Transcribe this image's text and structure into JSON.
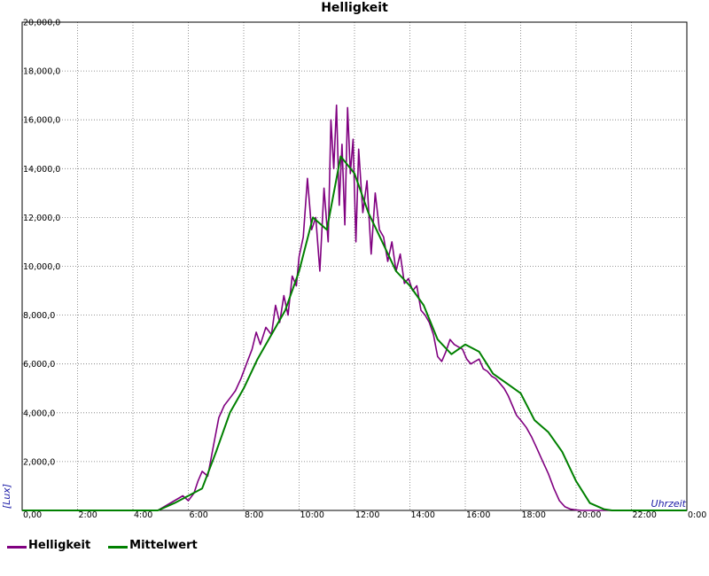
{
  "chart_data": {
    "type": "line",
    "title": "Helligkeit",
    "xlabel": "Uhrzeit",
    "ylabel": "[Lux]",
    "xlim": [
      0,
      24
    ],
    "ylim": [
      0,
      20000
    ],
    "grid": true,
    "legend_position": "bottom-left",
    "x_ticks": [
      {
        "value": 0,
        "label": "0,00"
      },
      {
        "value": 2,
        "label": "2:00"
      },
      {
        "value": 4,
        "label": "4:00"
      },
      {
        "value": 6,
        "label": "6:00"
      },
      {
        "value": 8,
        "label": "8:00"
      },
      {
        "value": 10,
        "label": "10:00"
      },
      {
        "value": 12,
        "label": "12:00"
      },
      {
        "value": 14,
        "label": "14:00"
      },
      {
        "value": 16,
        "label": "16:00"
      },
      {
        "value": 18,
        "label": "18:00"
      },
      {
        "value": 20,
        "label": "20:00"
      },
      {
        "value": 22,
        "label": "22:00"
      },
      {
        "value": 24,
        "label": "0:00"
      }
    ],
    "y_ticks": [
      {
        "value": 2000,
        "label": "2,000,0"
      },
      {
        "value": 4000,
        "label": "4,000,0"
      },
      {
        "value": 6000,
        "label": "6,000,0"
      },
      {
        "value": 8000,
        "label": "8,000,0"
      },
      {
        "value": 10000,
        "label": "10,000,0"
      },
      {
        "value": 12000,
        "label": "12,000,0"
      },
      {
        "value": 14000,
        "label": "14,000,0"
      },
      {
        "value": 16000,
        "label": "16,000,0"
      },
      {
        "value": 18000,
        "label": "18,000,0"
      },
      {
        "value": 20000,
        "label": "20,000,0"
      }
    ],
    "series": [
      {
        "name": "Helligkeit",
        "color": "#800080",
        "x": [
          0,
          4.9,
          5.2,
          5.5,
          5.8,
          6.0,
          6.2,
          6.35,
          6.5,
          6.7,
          6.9,
          7.1,
          7.3,
          7.5,
          7.7,
          7.9,
          8.1,
          8.3,
          8.45,
          8.6,
          8.8,
          9.0,
          9.15,
          9.3,
          9.45,
          9.6,
          9.75,
          9.9,
          10.0,
          10.15,
          10.3,
          10.45,
          10.6,
          10.75,
          10.9,
          11.05,
          11.15,
          11.25,
          11.35,
          11.45,
          11.55,
          11.65,
          11.75,
          11.85,
          11.95,
          12.05,
          12.15,
          12.3,
          12.45,
          12.6,
          12.75,
          12.9,
          13.05,
          13.2,
          13.35,
          13.5,
          13.65,
          13.8,
          13.95,
          14.1,
          14.25,
          14.4,
          14.55,
          14.7,
          14.85,
          15.0,
          15.15,
          15.3,
          15.45,
          15.6,
          15.75,
          15.9,
          16.05,
          16.2,
          16.35,
          16.5,
          16.65,
          16.8,
          16.95,
          17.1,
          17.25,
          17.4,
          17.55,
          17.7,
          17.85,
          18.0,
          18.2,
          18.4,
          18.6,
          18.8,
          19.0,
          19.2,
          19.4,
          19.6,
          19.8,
          20.0,
          20.2,
          20.4,
          20.6,
          20.8,
          21.0,
          21.2,
          21.5,
          22.0,
          24.0
        ],
        "values": [
          0,
          0,
          200,
          400,
          600,
          400,
          700,
          1200,
          1600,
          1400,
          2600,
          3800,
          4300,
          4600,
          4900,
          5400,
          6000,
          6600,
          7300,
          6800,
          7500,
          7200,
          8400,
          7700,
          8800,
          8000,
          9600,
          9200,
          10400,
          11200,
          13600,
          11500,
          12000,
          9800,
          13200,
          11000,
          16000,
          14000,
          16600,
          12500,
          15000,
          11700,
          16500,
          13800,
          15200,
          11000,
          14800,
          12200,
          13500,
          10500,
          13000,
          11500,
          11200,
          10200,
          11000,
          9800,
          10500,
          9300,
          9500,
          9000,
          9200,
          8200,
          8000,
          7700,
          7200,
          6300,
          6100,
          6500,
          7000,
          6800,
          6700,
          6600,
          6200,
          6000,
          6100,
          6200,
          5800,
          5700,
          5500,
          5400,
          5200,
          5000,
          4700,
          4300,
          3900,
          3700,
          3400,
          3000,
          2500,
          2000,
          1500,
          900,
          400,
          150,
          50,
          20,
          0,
          0,
          0,
          0,
          0,
          0,
          0,
          0,
          0
        ]
      },
      {
        "name": "Mittelwert",
        "color": "#008000",
        "x": [
          0,
          4.9,
          5.5,
          6.0,
          6.5,
          7.0,
          7.5,
          8.0,
          8.5,
          9.0,
          9.5,
          10.0,
          10.5,
          11.0,
          11.5,
          12.0,
          12.5,
          13.0,
          13.5,
          14.0,
          14.5,
          15.0,
          15.5,
          16.0,
          16.5,
          17.0,
          17.5,
          18.0,
          18.5,
          19.0,
          19.5,
          20.0,
          20.5,
          21.0,
          21.3,
          22.0,
          24.0
        ],
        "values": [
          0,
          0,
          300,
          600,
          900,
          2400,
          4000,
          5000,
          6200,
          7200,
          8200,
          9800,
          12000,
          11500,
          14500,
          13800,
          12200,
          11000,
          9800,
          9200,
          8400,
          7000,
          6400,
          6800,
          6500,
          5600,
          5200,
          4800,
          3700,
          3200,
          2400,
          1200,
          300,
          50,
          0,
          0,
          0
        ]
      }
    ]
  }
}
